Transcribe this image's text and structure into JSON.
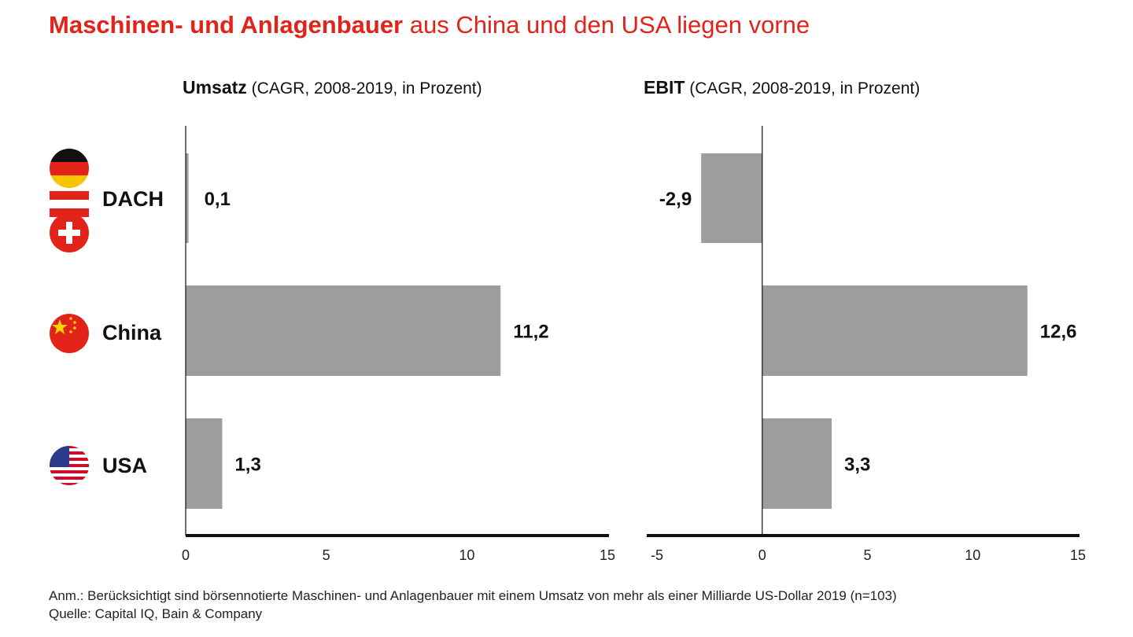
{
  "title": {
    "bold": "Maschinen- und Anlagenbauer",
    "rest": "aus China und den USA liegen vorne"
  },
  "colors": {
    "accent": "#e2231a",
    "bar": "#9d9d9c",
    "axis": "#111111"
  },
  "rows": [
    {
      "label": "DACH",
      "flag": "germany-austria-switzerland-flags-icon"
    },
    {
      "label": "China",
      "flag": "china-flag-icon"
    },
    {
      "label": "USA",
      "flag": "usa-flag-icon"
    }
  ],
  "chart_data": [
    {
      "type": "bar",
      "title_bold": "Umsatz",
      "title": "(CAGR, 2008-2019, in Prozent)",
      "categories": [
        "DACH",
        "China",
        "USA"
      ],
      "values": [
        0.1,
        11.2,
        1.3
      ],
      "labels": [
        "0,1",
        "11,2",
        "1,3"
      ],
      "xlim": [
        0,
        15
      ],
      "ticks": [
        "0",
        "5",
        "10",
        "15"
      ],
      "tick_values": [
        0,
        5,
        10,
        15
      ]
    },
    {
      "type": "bar",
      "title_bold": "EBIT",
      "title": "(CAGR, 2008-2019, in Prozent)",
      "categories": [
        "DACH",
        "China",
        "USA"
      ],
      "values": [
        -2.9,
        12.6,
        3.3
      ],
      "labels": [
        "-2,9",
        "12,6",
        "3,3"
      ],
      "xlim": [
        -5,
        15
      ],
      "ticks": [
        "-5",
        "0",
        "5",
        "10",
        "15"
      ],
      "tick_values": [
        -5,
        0,
        5,
        10,
        15
      ]
    }
  ],
  "footnote": {
    "note": "Anm.: Berücksichtigt sind börsennotierte Maschinen- und Anlagenbauer mit einem Umsatz von mehr als einer Milliarde US-Dollar 2019 (n=103)",
    "source": "Quelle: Capital IQ, Bain & Company"
  }
}
